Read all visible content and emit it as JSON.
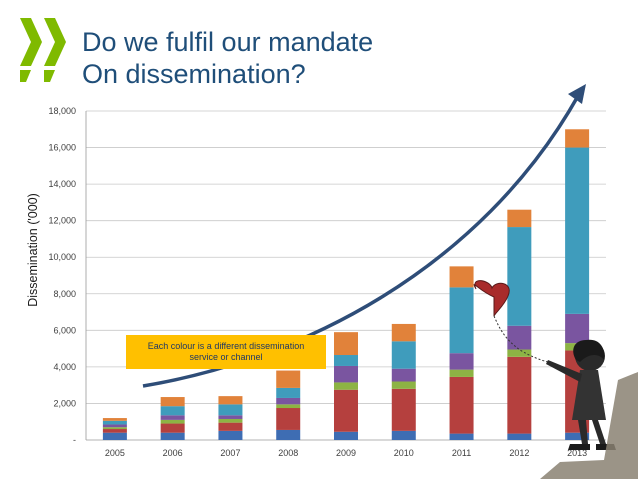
{
  "slide": {
    "title_line1": "Do we fulfil our mandate",
    "title_line2": "On dissemination?",
    "annotation": "Each colour is a different dissemination service or channel"
  },
  "logo": {
    "icon": "oecd-chevron-logo-icon",
    "color": "#7fba00"
  },
  "colors": {
    "blue": "#3e6db3",
    "red": "#b5403e",
    "green": "#8db344",
    "purple": "#7a55a0",
    "teal": "#3f9cbc",
    "orange": "#e1823a",
    "arrow": "#2e4d78",
    "annotation_bg": "#ffc000"
  },
  "chart_data": {
    "type": "bar",
    "stacked": true,
    "title": "",
    "xlabel": "",
    "ylabel": "Dissemination ('000)",
    "ylim": [
      0,
      18000
    ],
    "yticks": [
      0,
      2000,
      4000,
      6000,
      8000,
      10000,
      12000,
      14000,
      16000,
      18000
    ],
    "ytick_labels": [
      "-",
      "2,000",
      "4,000",
      "6,000",
      "8,000",
      "10,000",
      "12,000",
      "14,000",
      "16,000",
      "18,000"
    ],
    "grid": true,
    "categories": [
      "2005",
      "2006",
      "2007",
      "2008",
      "2009",
      "2010",
      "2011",
      "2012",
      "2013"
    ],
    "series": [
      {
        "name": "blue",
        "values": [
          400,
          400,
          500,
          550,
          450,
          500,
          350,
          350,
          400
        ]
      },
      {
        "name": "red",
        "values": [
          200,
          500,
          450,
          1200,
          2300,
          2300,
          3100,
          4200,
          4500
        ]
      },
      {
        "name": "green",
        "values": [
          100,
          200,
          200,
          200,
          400,
          400,
          400,
          400,
          400
        ]
      },
      {
        "name": "purple",
        "values": [
          150,
          250,
          200,
          350,
          900,
          700,
          900,
          1300,
          1600
        ]
      },
      {
        "name": "teal",
        "values": [
          200,
          500,
          600,
          550,
          600,
          1500,
          3600,
          5400,
          9100
        ]
      },
      {
        "name": "orange",
        "values": [
          150,
          500,
          450,
          950,
          1250,
          950,
          1150,
          950,
          1000
        ]
      }
    ]
  }
}
